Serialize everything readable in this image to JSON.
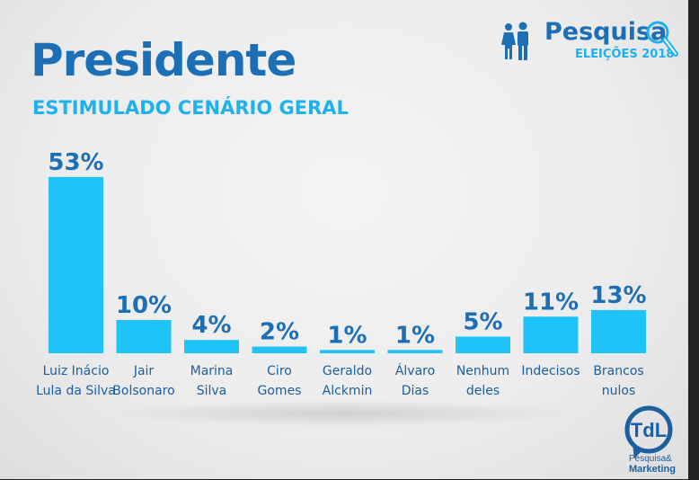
{
  "header": {
    "title": "Presidente",
    "subtitle": "ESTIMULADO CENÁRIO GERAL"
  },
  "logo": {
    "name": "Pesquisa",
    "sub": "ELEIÇÕES 2018",
    "icon": "people-icon",
    "search_icon": "magnifier-icon"
  },
  "footer_logo": {
    "mark": "TdL",
    "line1": "Pesquisa&",
    "line2": "Marketing"
  },
  "colors": {
    "bar": "#1fc3f7",
    "title": "#1c6fb5",
    "subtitle": "#1fb1ee",
    "label": "#1c5fa0"
  },
  "chart_data": {
    "type": "bar",
    "title": "Presidente",
    "subtitle": "ESTIMULADO CENÁRIO GERAL",
    "categories": [
      [
        "Luiz Inácio",
        "Lula da Silva"
      ],
      [
        "Jair",
        "Bolsonaro"
      ],
      [
        "Marina",
        "Silva"
      ],
      [
        "Ciro",
        "Gomes"
      ],
      [
        "Geraldo",
        "Alckmin"
      ],
      [
        "Álvaro",
        "Dias"
      ],
      [
        "Nenhum",
        "deles"
      ],
      [
        "Indecisos"
      ],
      [
        "Brancos",
        "nulos"
      ]
    ],
    "values": [
      53,
      10,
      4,
      2,
      1,
      1,
      5,
      11,
      13
    ],
    "data_labels": [
      "53%",
      "10%",
      "4%",
      "2%",
      "1%",
      "1%",
      "5%",
      "11%",
      "13%"
    ],
    "unit": "%",
    "ylim": [
      0,
      55
    ],
    "grid": false
  }
}
